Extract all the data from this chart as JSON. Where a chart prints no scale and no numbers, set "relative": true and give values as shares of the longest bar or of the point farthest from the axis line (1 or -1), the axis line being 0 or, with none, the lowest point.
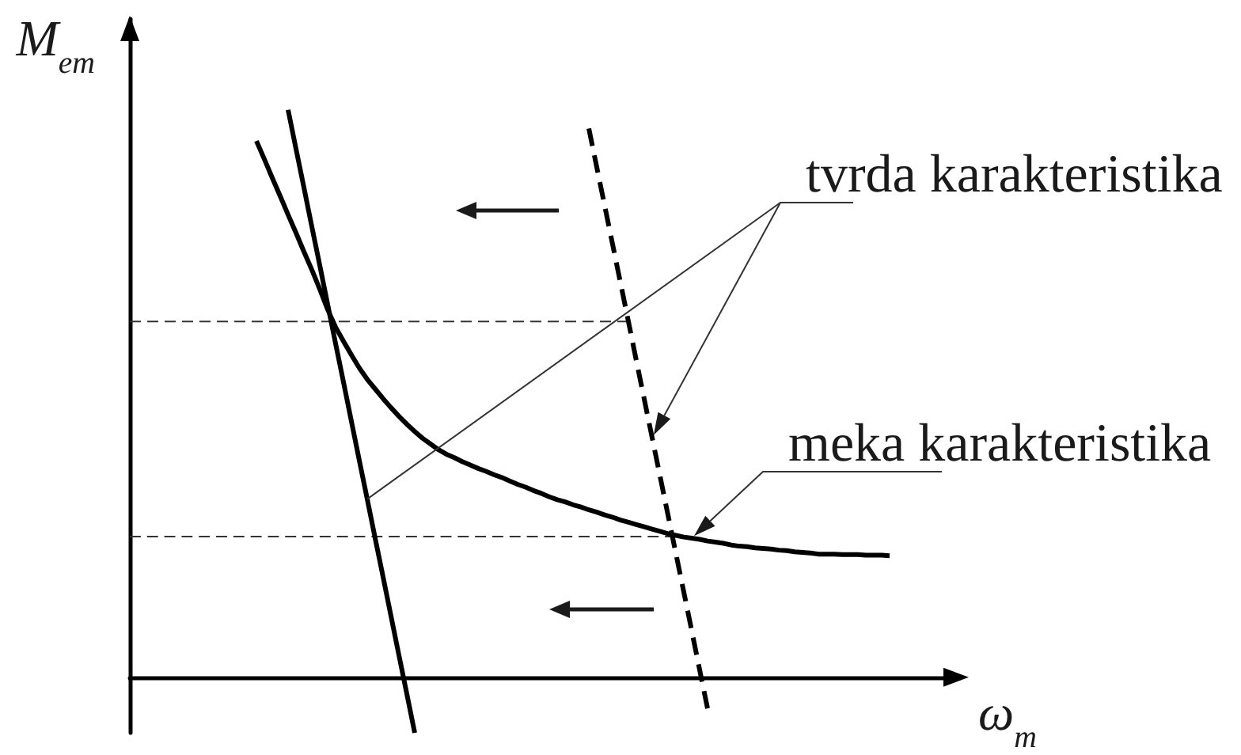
{
  "chart_data": {
    "type": "line",
    "xlabel": "ω$_{m}$",
    "ylabel": "M$_{em}$",
    "relative": true,
    "categories": [
      null,
      null,
      null,
      null,
      null,
      null,
      null,
      null,
      null,
      null,
      null,
      null,
      null,
      null,
      null,
      null,
      null,
      null,
      null,
      null,
      null,
      null,
      null,
      null,
      null,
      null,
      null,
      null,
      null,
      null,
      null,
      null,
      null,
      null,
      null,
      null,
      null,
      null,
      null,
      null,
      null,
      null,
      null,
      null,
      null,
      null,
      null,
      null,
      null,
      null,
      null,
      null,
      null,
      null,
      null,
      null,
      null,
      null,
      null,
      null,
      null,
      null,
      null,
      null,
      null,
      null,
      null,
      null,
      null,
      null,
      null,
      null,
      null,
      null,
      null,
      null,
      null,
      null,
      null,
      null,
      null,
      null,
      null,
      null,
      null,
      null,
      null,
      null,
      null,
      null,
      null,
      null,
      null,
      null,
      null,
      null,
      null,
      null,
      null,
      null,
      null,
      null,
      null,
      null,
      null
    ],
    "series": [
      {
        "name": "tvrda karakteristika",
        "color": "#000000",
        "line_style": "solid",
        "values": [
          null,
          null,
          null,
          null,
          null,
          null,
          null,
          null,
          null,
          null,
          null,
          null,
          null,
          null,
          null,
          null,
          null,
          null,
          null,
          null,
          1,
          0.931,
          0.863,
          0.794,
          0.726,
          0.657,
          0.588,
          0.52,
          0.451,
          0.382,
          0.314,
          0.245,
          0.177,
          0.108,
          0.039,
          -0.029,
          -0.098,
          null,
          null,
          null,
          null,
          null,
          null,
          null,
          null,
          null,
          null,
          null,
          null,
          null,
          null,
          null,
          null,
          null,
          null,
          null,
          null,
          null,
          null,
          null,
          null,
          null,
          null,
          null,
          null,
          null,
          null,
          null,
          null,
          null,
          null,
          null,
          null,
          null,
          null,
          null,
          null,
          null,
          null,
          null,
          null,
          null,
          null,
          null,
          null,
          null,
          null,
          null,
          null,
          null,
          null,
          null,
          null,
          null,
          null,
          null,
          null,
          null,
          null,
          null,
          null,
          null,
          null,
          null,
          null
        ]
      },
      {
        "color": "#000000",
        "line_style": "dashed",
        "values": [
          null,
          null,
          null,
          null,
          null,
          null,
          null,
          null,
          null,
          null,
          null,
          null,
          null,
          null,
          null,
          null,
          null,
          null,
          null,
          null,
          null,
          null,
          null,
          null,
          null,
          null,
          null,
          null,
          null,
          null,
          null,
          null,
          null,
          null,
          null,
          null,
          null,
          null,
          null,
          null,
          null,
          null,
          null,
          null,
          null,
          null,
          null,
          null,
          null,
          null,
          null,
          null,
          null,
          null,
          null,
          null,
          null,
          null,
          0.967,
          0.899,
          0.831,
          0.763,
          0.695,
          0.627,
          0.558,
          0.49,
          0.422,
          0.354,
          0.286,
          0.218,
          0.15,
          0.082,
          0.013,
          -0.055,
          null,
          null,
          null,
          null,
          null,
          null,
          null,
          null,
          null,
          null,
          null,
          null,
          null,
          null,
          null,
          null,
          null,
          null,
          null,
          null,
          null,
          null,
          null,
          null,
          null,
          null,
          null,
          null,
          null,
          null,
          null
        ]
      },
      {
        "name": "meka karakteristika",
        "color": "#000000",
        "line_style": "solid",
        "values": [
          null,
          null,
          null,
          null,
          null,
          null,
          null,
          null,
          null,
          null,
          null,
          null,
          null,
          null,
          null,
          null,
          0.945,
          0.913,
          0.88,
          0.848,
          0.815,
          0.783,
          0.75,
          0.718,
          0.684,
          0.648,
          0.617,
          0.592,
          0.568,
          0.545,
          0.525,
          0.508,
          0.491,
          0.475,
          0.46,
          0.446,
          0.433,
          0.421,
          0.411,
          0.401,
          0.393,
          0.387,
          0.38,
          0.374,
          0.368,
          0.363,
          0.357,
          0.352,
          0.346,
          0.34,
          0.335,
          0.329,
          0.324,
          0.318,
          0.313,
          0.309,
          0.304,
          0.3,
          0.295,
          0.291,
          0.286,
          0.282,
          0.277,
          0.273,
          0.269,
          0.265,
          0.261,
          0.257,
          0.253,
          0.25,
          0.247,
          0.245,
          0.243,
          0.24,
          0.238,
          0.236,
          0.233,
          0.231,
          0.23,
          0.228,
          0.227,
          0.226,
          0.224,
          0.223,
          0.221,
          0.22,
          0.219,
          0.217,
          0.217,
          0.217,
          0.216,
          0.216,
          0.216,
          0.215,
          0.215,
          0.215,
          0.214,
          null,
          null,
          null,
          null,
          null,
          null,
          null,
          null
        ]
      },
      {
        "color": "#333333",
        "line_style": "dashed",
        "values": [
          0.627,
          0.627,
          0.627,
          0.627,
          0.627,
          0.627,
          0.627,
          0.627,
          0.627,
          0.627,
          0.627,
          0.627,
          0.627,
          0.627,
          0.627,
          0.627,
          0.627,
          0.627,
          0.627,
          0.627,
          0.627,
          0.627,
          0.627,
          0.627,
          0.627,
          0.627,
          0.627,
          0.627,
          0.627,
          0.627,
          0.627,
          0.627,
          0.627,
          0.627,
          0.627,
          0.627,
          0.627,
          0.627,
          0.627,
          0.627,
          0.627,
          0.627,
          0.627,
          0.627,
          0.627,
          0.627,
          0.627,
          0.627,
          0.627,
          0.627,
          0.627,
          0.627,
          0.627,
          0.627,
          0.627,
          0.627,
          0.627,
          0.627,
          0.627,
          0.627,
          0.627,
          0.627,
          0.627,
          0.627,
          null,
          null,
          null,
          null,
          null,
          null,
          null,
          null,
          null,
          null,
          null,
          null,
          null,
          null,
          null,
          null,
          null,
          null,
          null,
          null,
          null,
          null,
          null,
          null,
          null,
          null,
          null,
          null,
          null,
          null,
          null,
          null,
          null,
          null,
          null,
          null,
          null,
          null,
          null,
          null,
          null
        ]
      },
      {
        "color": "#333333",
        "line_style": "dashed",
        "values": [
          0.248,
          0.248,
          0.248,
          0.248,
          0.248,
          0.248,
          0.248,
          0.248,
          0.248,
          0.248,
          0.248,
          0.248,
          0.248,
          0.248,
          0.248,
          0.248,
          0.248,
          0.248,
          0.248,
          0.248,
          0.248,
          0.248,
          0.248,
          0.248,
          0.248,
          0.248,
          0.248,
          0.248,
          0.248,
          0.248,
          0.248,
          0.248,
          0.248,
          0.248,
          0.248,
          0.248,
          0.248,
          0.248,
          0.248,
          0.248,
          0.248,
          0.248,
          0.248,
          0.248,
          0.248,
          0.248,
          0.248,
          0.248,
          0.248,
          0.248,
          0.248,
          0.248,
          0.248,
          0.248,
          0.248,
          0.248,
          0.248,
          0.248,
          0.248,
          0.248,
          0.248,
          0.248,
          0.248,
          0.248,
          0.248,
          0.248,
          0.248,
          0.248,
          0.248,
          0.248,
          null,
          null,
          null,
          null,
          null,
          null,
          null,
          null,
          null,
          null,
          null,
          null,
          null,
          null,
          null,
          null,
          null,
          null,
          null,
          null,
          null,
          null,
          null,
          null,
          null,
          null,
          null,
          null,
          null,
          null,
          null,
          null,
          null,
          null,
          null
        ]
      }
    ]
  }
}
